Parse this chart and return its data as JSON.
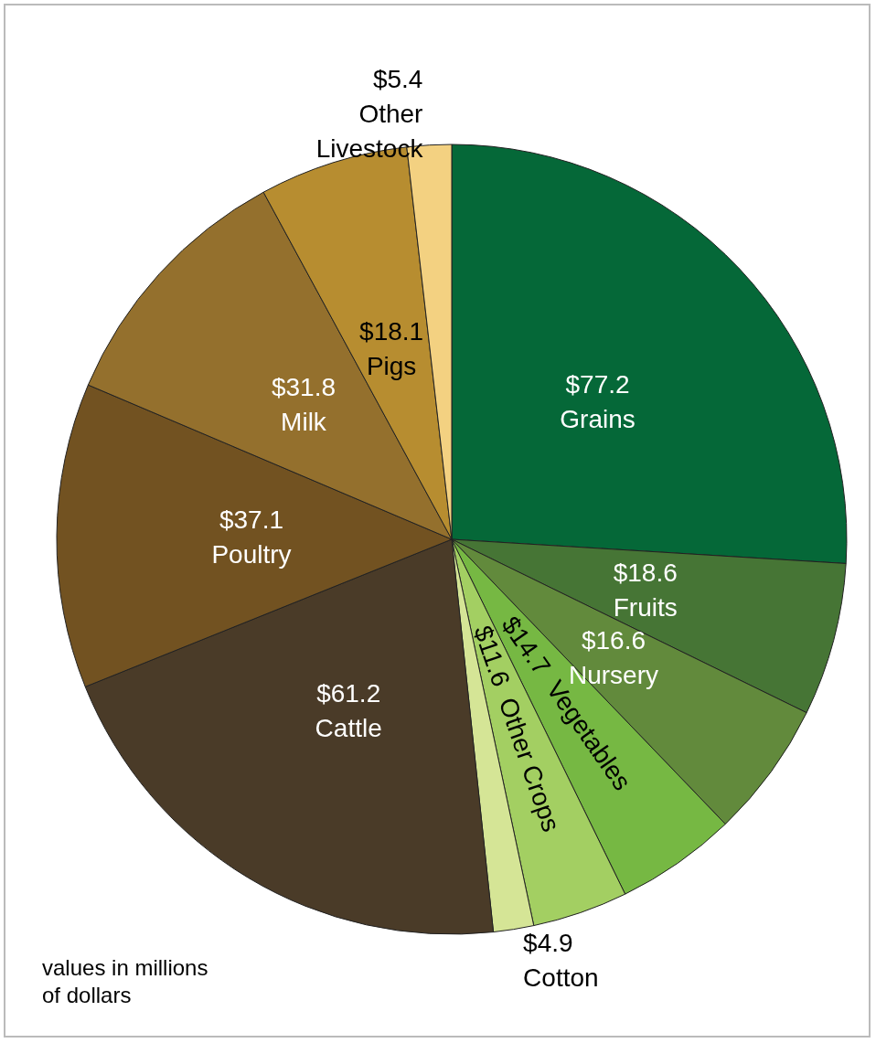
{
  "chart_data": {
    "type": "pie",
    "categories": [
      "Grains",
      "Fruits",
      "Nursery",
      "Vegetables",
      "Other Crops",
      "Cotton",
      "Cattle",
      "Poultry",
      "Milk",
      "Pigs",
      "Other Livestock"
    ],
    "values": [
      77.2,
      18.6,
      16.6,
      14.7,
      11.6,
      4.9,
      61.2,
      37.1,
      31.8,
      18.1,
      5.4
    ],
    "value_labels": [
      "$77.2",
      "$18.6",
      "$16.6",
      "$14.7",
      "$11.6",
      "$4.9",
      "$61.2",
      "$37.1",
      "$31.8",
      "$18.1",
      "$5.4"
    ],
    "colors": [
      "#056838",
      "#467535",
      "#628a3c",
      "#76b843",
      "#a3cf62",
      "#d5e596",
      "#4a3b28",
      "#725221",
      "#94702d",
      "#b78d30",
      "#f3d181"
    ],
    "annotations": [
      "values in millions of dollars"
    ],
    "legend": false
  }
}
